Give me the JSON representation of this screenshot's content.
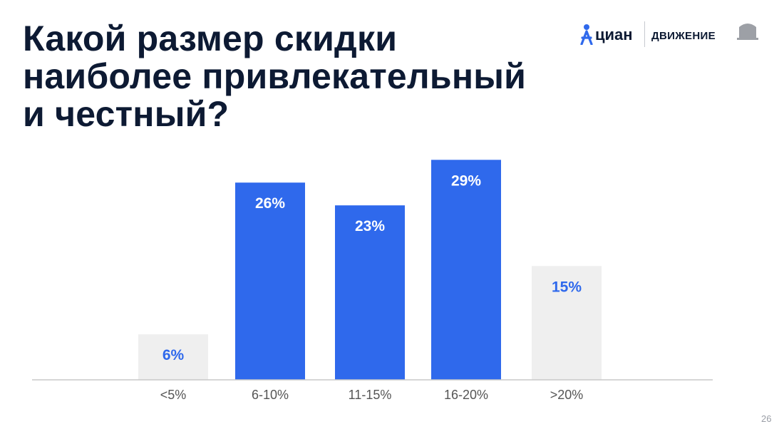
{
  "slide": {
    "title_lines": [
      "Какой размер скидки",
      "наиболее привлекательный",
      "и честный?"
    ],
    "page_number": "26"
  },
  "logos": {
    "cian": {
      "text": "циан",
      "icon": "cian-person-icon"
    },
    "partner": {
      "text": "ДВИЖЕНИЕ",
      "icon": "building-icon"
    }
  },
  "colors": {
    "highlight_bar": "#2f69ec",
    "muted_bar": "#efefef",
    "highlight_label": "#ffffff",
    "muted_label": "#2f69ec",
    "axis": "#c8c8c8",
    "tick_label": "#555555",
    "title": "#0d1a33"
  },
  "chart_data": {
    "type": "bar",
    "title": "Какой размер скидки наиболее привлекательный и честный?",
    "xlabel": "",
    "ylabel": "",
    "categories": [
      "<5%",
      "6-10%",
      "11-15%",
      "16-20%",
      ">20%"
    ],
    "values": [
      6,
      26,
      23,
      29,
      15
    ],
    "data_labels": [
      "6%",
      "26%",
      "23%",
      "29%",
      "15%"
    ],
    "highlighted": [
      false,
      true,
      true,
      true,
      false
    ],
    "unit": "%",
    "ylim": [
      0,
      31
    ],
    "grid": false,
    "legend": "none"
  }
}
